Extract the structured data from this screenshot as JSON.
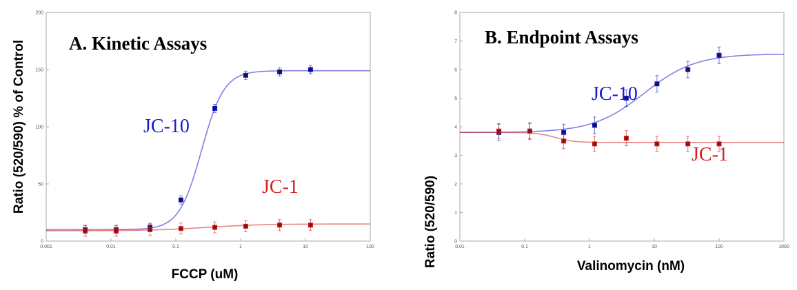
{
  "chart_data": [
    {
      "type": "scatter",
      "title": "A. Kinetic Assays",
      "xlabel": "FCCP (uM)",
      "ylabel": "Ratio (520/590) % of Control",
      "x_scale": "log",
      "xlim": [
        0.001,
        100
      ],
      "ylim": [
        0,
        200
      ],
      "x_ticks": [
        "0.001",
        "0.01",
        "0.1",
        "1",
        "10",
        "100"
      ],
      "y_ticks": [
        "0",
        "50",
        "100",
        "150",
        "200"
      ],
      "series": [
        {
          "name": "JC-10",
          "color": "#1a1acc",
          "points": [
            {
              "x": 0.004,
              "y": 10
            },
            {
              "x": 0.012,
              "y": 10
            },
            {
              "x": 0.04,
              "y": 12
            },
            {
              "x": 0.12,
              "y": 36
            },
            {
              "x": 0.4,
              "y": 116
            },
            {
              "x": 1.2,
              "y": 145
            },
            {
              "x": 4,
              "y": 148
            },
            {
              "x": 12,
              "y": 150
            }
          ],
          "fit": {
            "bottom": 10,
            "top": 149,
            "ec50": 0.25,
            "hill": 2.5
          }
        },
        {
          "name": "JC-1",
          "color": "#d42020",
          "points": [
            {
              "x": 0.004,
              "y": 9
            },
            {
              "x": 0.012,
              "y": 9
            },
            {
              "x": 0.04,
              "y": 10
            },
            {
              "x": 0.12,
              "y": 11
            },
            {
              "x": 0.4,
              "y": 12
            },
            {
              "x": 1.2,
              "y": 13
            },
            {
              "x": 4,
              "y": 14
            },
            {
              "x": 12,
              "y": 14
            }
          ],
          "fit": {
            "bottom": 9,
            "top": 15,
            "ec50": 0.3,
            "hill": 1
          }
        }
      ]
    },
    {
      "type": "scatter",
      "title": "B. Endpoint Assays",
      "xlabel": "Valinomycin (nM)",
      "ylabel": "Ratio (520/590)",
      "x_scale": "log",
      "xlim": [
        0.01,
        1000
      ],
      "ylim": [
        0,
        8
      ],
      "x_ticks": [
        "0.01",
        "0.1",
        "1",
        "10",
        "100",
        "1000"
      ],
      "y_ticks": [
        "0",
        "1",
        "2",
        "3",
        "4",
        "5",
        "6",
        "7",
        "8"
      ],
      "series": [
        {
          "name": "JC-10",
          "color": "#1a1acc",
          "points": [
            {
              "x": 0.04,
              "y": 3.8
            },
            {
              "x": 0.12,
              "y": 3.85
            },
            {
              "x": 0.4,
              "y": 3.8
            },
            {
              "x": 1.2,
              "y": 4.05
            },
            {
              "x": 3.7,
              "y": 5.0
            },
            {
              "x": 11,
              "y": 5.5
            },
            {
              "x": 33,
              "y": 6.0
            },
            {
              "x": 100,
              "y": 6.5
            }
          ],
          "fit": {
            "bottom": 3.8,
            "top": 6.55,
            "ec50": 7,
            "hill": 1.1
          }
        },
        {
          "name": "JC-1",
          "color": "#d42020",
          "points": [
            {
              "x": 0.04,
              "y": 3.85
            },
            {
              "x": 0.12,
              "y": 3.85
            },
            {
              "x": 0.4,
              "y": 3.5
            },
            {
              "x": 1.2,
              "y": 3.4
            },
            {
              "x": 3.7,
              "y": 3.6
            },
            {
              "x": 11,
              "y": 3.4
            },
            {
              "x": 33,
              "y": 3.4
            },
            {
              "x": 100,
              "y": 3.4
            }
          ],
          "fit": {
            "bottom": 3.45,
            "top": 3.8,
            "ec50": 0.3,
            "hill": -3
          }
        }
      ]
    }
  ]
}
